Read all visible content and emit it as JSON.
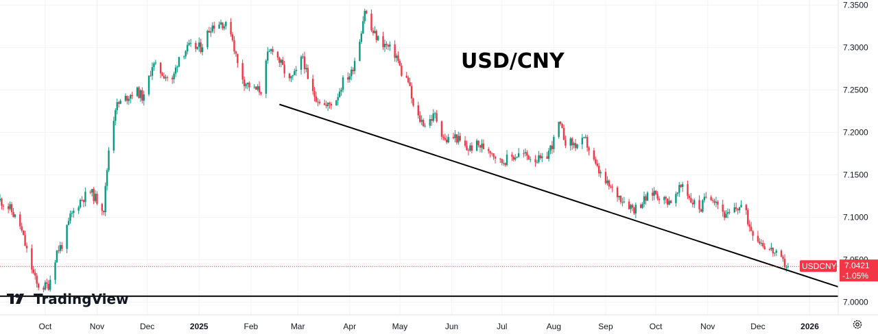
{
  "chart_data": {
    "type": "candlestick",
    "title": "USD/CNY",
    "symbol": "USDCNY",
    "last_price": "7.0421",
    "change_pct": "-1.05%",
    "ylim": [
      6.985,
      7.356
    ],
    "y_ticks": [
      "7.3500",
      "7.3000",
      "7.2500",
      "7.2000",
      "7.1500",
      "7.1000",
      "7.0500",
      "7.0000"
    ],
    "x_ticks": [
      {
        "label": "Oct",
        "date": "2024-10-01",
        "bold": false
      },
      {
        "label": "Nov",
        "date": "2024-11-01",
        "bold": false
      },
      {
        "label": "Dec",
        "date": "2024-12-01",
        "bold": false
      },
      {
        "label": "2025",
        "date": "2025-01-01",
        "bold": true
      },
      {
        "label": "Feb",
        "date": "2025-02-01",
        "bold": false
      },
      {
        "label": "Mar",
        "date": "2025-03-01",
        "bold": false
      },
      {
        "label": "Apr",
        "date": "2025-04-01",
        "bold": false
      },
      {
        "label": "May",
        "date": "2025-05-01",
        "bold": false
      },
      {
        "label": "Jun",
        "date": "2025-06-01",
        "bold": false
      },
      {
        "label": "Jul",
        "date": "2025-07-01",
        "bold": false
      },
      {
        "label": "Aug",
        "date": "2025-08-01",
        "bold": false
      },
      {
        "label": "Sep",
        "date": "2025-09-01",
        "bold": false
      },
      {
        "label": "Oct",
        "date": "2025-10-01",
        "bold": false
      },
      {
        "label": "Nov",
        "date": "2025-11-01",
        "bold": false
      },
      {
        "label": "Dec",
        "date": "2025-12-01",
        "bold": false
      },
      {
        "label": "2026",
        "date": "2026-01-01",
        "bold": true
      }
    ],
    "x_range": [
      "2024-09-04",
      "2026-01-18"
    ],
    "price_path": [
      [
        "2024-09-04",
        7.12
      ],
      [
        "2024-09-10",
        7.11
      ],
      [
        "2024-09-16",
        7.09
      ],
      [
        "2024-09-20",
        7.06
      ],
      [
        "2024-09-26",
        7.02
      ],
      [
        "2024-09-30",
        7.018
      ],
      [
        "2024-10-03",
        7.02
      ],
      [
        "2024-10-08",
        7.06
      ],
      [
        "2024-10-12",
        7.07
      ],
      [
        "2024-10-16",
        7.1
      ],
      [
        "2024-10-22",
        7.12
      ],
      [
        "2024-10-28",
        7.13
      ],
      [
        "2024-11-01",
        7.12
      ],
      [
        "2024-11-05",
        7.11
      ],
      [
        "2024-11-08",
        7.18
      ],
      [
        "2024-11-12",
        7.23
      ],
      [
        "2024-11-18",
        7.24
      ],
      [
        "2024-11-24",
        7.25
      ],
      [
        "2024-11-29",
        7.24
      ],
      [
        "2024-12-04",
        7.28
      ],
      [
        "2024-12-10",
        7.27
      ],
      [
        "2024-12-16",
        7.26
      ],
      [
        "2024-12-20",
        7.29
      ],
      [
        "2024-12-26",
        7.3
      ],
      [
        "2025-01-02",
        7.3
      ],
      [
        "2025-01-08",
        7.325
      ],
      [
        "2025-01-14",
        7.33
      ],
      [
        "2025-01-20",
        7.32
      ],
      [
        "2025-01-24",
        7.28
      ],
      [
        "2025-01-28",
        7.26
      ],
      [
        "2025-02-03",
        7.25
      ],
      [
        "2025-02-07",
        7.25
      ],
      [
        "2025-02-11",
        7.29
      ],
      [
        "2025-02-14",
        7.3
      ],
      [
        "2025-02-19",
        7.28
      ],
      [
        "2025-02-24",
        7.26
      ],
      [
        "2025-02-28",
        7.27
      ],
      [
        "2025-03-04",
        7.29
      ],
      [
        "2025-03-08",
        7.25
      ],
      [
        "2025-03-13",
        7.24
      ],
      [
        "2025-03-18",
        7.23
      ],
      [
        "2025-03-24",
        7.24
      ],
      [
        "2025-03-28",
        7.26
      ],
      [
        "2025-04-02",
        7.27
      ],
      [
        "2025-04-07",
        7.31
      ],
      [
        "2025-04-10",
        7.345
      ],
      [
        "2025-04-14",
        7.32
      ],
      [
        "2025-04-18",
        7.31
      ],
      [
        "2025-04-24",
        7.3
      ],
      [
        "2025-04-29",
        7.29
      ],
      [
        "2025-05-02",
        7.27
      ],
      [
        "2025-05-06",
        7.26
      ],
      [
        "2025-05-10",
        7.22
      ],
      [
        "2025-05-16",
        7.21
      ],
      [
        "2025-05-22",
        7.22
      ],
      [
        "2025-05-28",
        7.19
      ],
      [
        "2025-06-03",
        7.195
      ],
      [
        "2025-06-10",
        7.18
      ],
      [
        "2025-06-16",
        7.185
      ],
      [
        "2025-06-24",
        7.18
      ],
      [
        "2025-06-30",
        7.165
      ],
      [
        "2025-07-06",
        7.17
      ],
      [
        "2025-07-12",
        7.175
      ],
      [
        "2025-07-20",
        7.17
      ],
      [
        "2025-07-26",
        7.165
      ],
      [
        "2025-08-01",
        7.19
      ],
      [
        "2025-08-04",
        7.21
      ],
      [
        "2025-08-08",
        7.19
      ],
      [
        "2025-08-14",
        7.185
      ],
      [
        "2025-08-20",
        7.19
      ],
      [
        "2025-08-26",
        7.16
      ],
      [
        "2025-09-01",
        7.14
      ],
      [
        "2025-09-06",
        7.13
      ],
      [
        "2025-09-12",
        7.12
      ],
      [
        "2025-09-18",
        7.11
      ],
      [
        "2025-09-24",
        7.12
      ],
      [
        "2025-09-30",
        7.13
      ],
      [
        "2025-10-06",
        7.12
      ],
      [
        "2025-10-12",
        7.12
      ],
      [
        "2025-10-17",
        7.14
      ],
      [
        "2025-10-22",
        7.12
      ],
      [
        "2025-10-28",
        7.11
      ],
      [
        "2025-11-01",
        7.13
      ],
      [
        "2025-11-06",
        7.12
      ],
      [
        "2025-11-12",
        7.1
      ],
      [
        "2025-11-18",
        7.11
      ],
      [
        "2025-11-22",
        7.115
      ],
      [
        "2025-11-26",
        7.09
      ],
      [
        "2025-12-01",
        7.075
      ],
      [
        "2025-12-06",
        7.065
      ],
      [
        "2025-12-10",
        7.06
      ],
      [
        "2025-12-14",
        7.05
      ],
      [
        "2025-12-17",
        7.045
      ],
      [
        "2025-12-19",
        7.0421
      ]
    ],
    "trendlines": [
      {
        "from": [
          "2025-02-18",
          7.233
        ],
        "to": [
          "2026-01-18",
          7.018
        ]
      },
      {
        "from": [
          "2024-09-04",
          7.007
        ],
        "to": [
          "2026-01-18",
          7.007
        ]
      }
    ],
    "colors": {
      "up": "#089981",
      "down": "#F23645",
      "trendline": "#000000",
      "grid": "#f2f3f5",
      "axis_text": "#131722"
    }
  },
  "branding": {
    "name": "TradingView"
  }
}
